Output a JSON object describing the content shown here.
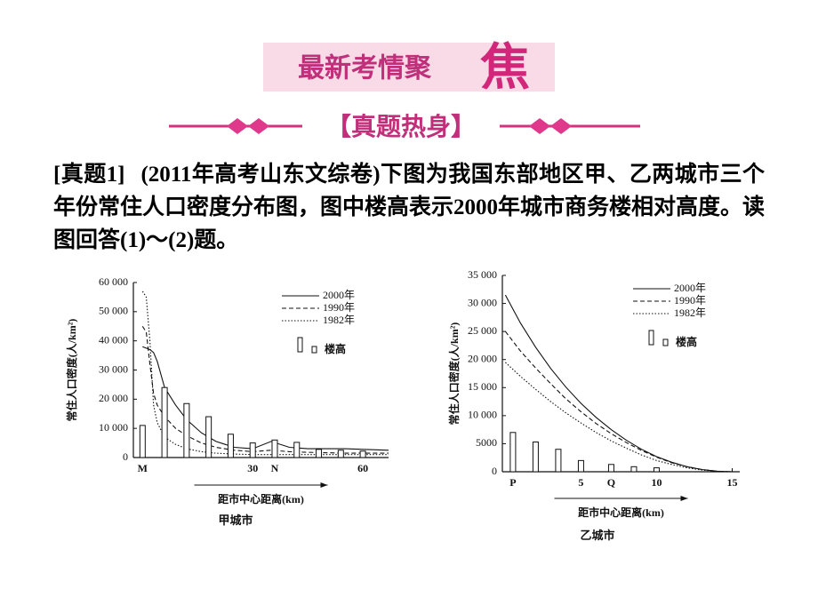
{
  "header": {
    "title": "最新考情聚",
    "title_char": "焦",
    "subtitle": "【真题热身】"
  },
  "question": {
    "tag": "[真题1]",
    "text": "(2011年高考山东文综卷)下图为我国东部地区甲、乙两城市三个年份常住人口密度分布图，图中楼高表示2000年城市商务楼相对高度。读图回答(1)～(2)题。"
  },
  "chart_data": [
    {
      "type": "line",
      "title": "甲城市",
      "xlabel": "距市中心距离(km)",
      "ylabel": "常住人口密度(人/km²)",
      "xlim": [
        -2.5,
        67
      ],
      "ylim": [
        0,
        60000
      ],
      "xticks": [
        {
          "value": 0,
          "label": "M"
        },
        30,
        {
          "value": 36,
          "label": "N"
        },
        60
      ],
      "yticks": [
        0,
        {
          "value": 10000,
          "label": "10 000"
        },
        {
          "value": 20000,
          "label": "20 000"
        },
        {
          "value": 30000,
          "label": "30 000"
        },
        {
          "value": 40000,
          "label": "40 000"
        },
        {
          "value": 50000,
          "label": "50 000"
        },
        {
          "value": 60000,
          "label": "60 000"
        }
      ],
      "legend": "upper right",
      "series": [
        {
          "name": "2000年",
          "color": "#111111",
          "linestyle": "solid",
          "x": [
            0,
            1,
            2,
            3,
            4,
            6,
            9,
            12,
            16,
            20,
            25,
            30,
            35,
            40,
            45,
            55,
            67
          ],
          "values": [
            38000,
            37500,
            37000,
            36000,
            33000,
            24000,
            18000,
            13000,
            8500,
            5500,
            3500,
            3000,
            5500,
            3500,
            3000,
            3000,
            2500
          ]
        },
        {
          "name": "1990年",
          "color": "#111111",
          "linestyle": "dashed",
          "x": [
            0,
            1,
            2,
            3,
            4,
            6,
            9,
            12,
            16,
            20,
            25,
            30,
            35,
            40,
            45,
            55,
            67
          ],
          "values": [
            45000,
            43000,
            32000,
            22000,
            18000,
            14000,
            10000,
            7500,
            5000,
            3500,
            2500,
            2000,
            2500,
            2000,
            1800,
            1500,
            1500
          ]
        },
        {
          "name": "1982年",
          "color": "#111111",
          "linestyle": "dotted",
          "x": [
            0,
            1,
            2,
            3,
            4,
            6,
            9,
            12,
            16,
            20,
            25,
            30,
            35,
            40,
            45,
            55,
            67
          ],
          "values": [
            57000,
            55000,
            40000,
            18000,
            12000,
            7000,
            4500,
            3000,
            2000,
            1500,
            1200,
            1000,
            1000,
            1000,
            1000,
            1000,
            1000
          ]
        },
        {
          "name": "楼高",
          "color": "#111111",
          "type": "bar",
          "x": [
            0,
            6,
            12,
            18,
            24,
            30,
            36,
            42,
            48,
            54,
            60
          ],
          "values": [
            11000,
            24000,
            18500,
            14000,
            8000,
            5000,
            6000,
            5200,
            2800,
            2500,
            2200
          ]
        }
      ]
    },
    {
      "type": "line",
      "title": "乙城市",
      "xlabel": "距市中心距离(km)",
      "ylabel": "常住人口密度(人/km²)",
      "xlim": [
        -0.2,
        15.5
      ],
      "ylim": [
        0,
        35000
      ],
      "xticks": [
        {
          "value": 0.5,
          "label": "P"
        },
        5,
        {
          "value": 7,
          "label": "Q"
        },
        10,
        15
      ],
      "yticks": [
        0,
        {
          "value": 5000,
          "label": "5000"
        },
        {
          "value": 10000,
          "label": "10 000"
        },
        {
          "value": 15000,
          "label": "15 000"
        },
        {
          "value": 20000,
          "label": "20 000"
        },
        {
          "value": 25000,
          "label": "25 000"
        },
        {
          "value": 30000,
          "label": "30 000"
        },
        {
          "value": 35000,
          "label": "35 000"
        }
      ],
      "legend": "upper right",
      "series": [
        {
          "name": "2000年",
          "color": "#111111",
          "linestyle": "solid",
          "x": [
            0,
            1,
            2,
            3,
            4,
            5,
            6,
            7,
            8,
            9,
            10,
            11,
            12,
            13,
            14,
            15
          ],
          "values": [
            31500,
            26500,
            22200,
            18400,
            15100,
            12200,
            9700,
            7500,
            5600,
            4000,
            2700,
            1700,
            900,
            400,
            100,
            0
          ]
        },
        {
          "name": "1990年",
          "color": "#111111",
          "linestyle": "dashed",
          "x": [
            0,
            1,
            2,
            3,
            4,
            5,
            6,
            7,
            8,
            9,
            10,
            11,
            12,
            13,
            14,
            15
          ],
          "values": [
            25000,
            21500,
            18500,
            15700,
            13000,
            10700,
            8600,
            6800,
            5200,
            3800,
            2600,
            1600,
            900,
            400,
            100,
            0
          ]
        },
        {
          "name": "1982年",
          "color": "#111111",
          "linestyle": "dotted",
          "x": [
            0,
            1,
            2,
            3,
            4,
            5,
            6,
            7,
            8,
            9,
            10,
            11,
            12,
            13,
            14,
            15
          ],
          "values": [
            19500,
            17000,
            14700,
            12500,
            10500,
            8700,
            7000,
            5500,
            4200,
            3000,
            2000,
            1300,
            700,
            300,
            100,
            0
          ]
        },
        {
          "name": "楼高",
          "color": "#111111",
          "type": "bar",
          "x": [
            0.5,
            2,
            3.5,
            5,
            7,
            8.5,
            10
          ],
          "values": [
            7000,
            5300,
            4000,
            2000,
            1300,
            900,
            700
          ]
        }
      ]
    }
  ]
}
